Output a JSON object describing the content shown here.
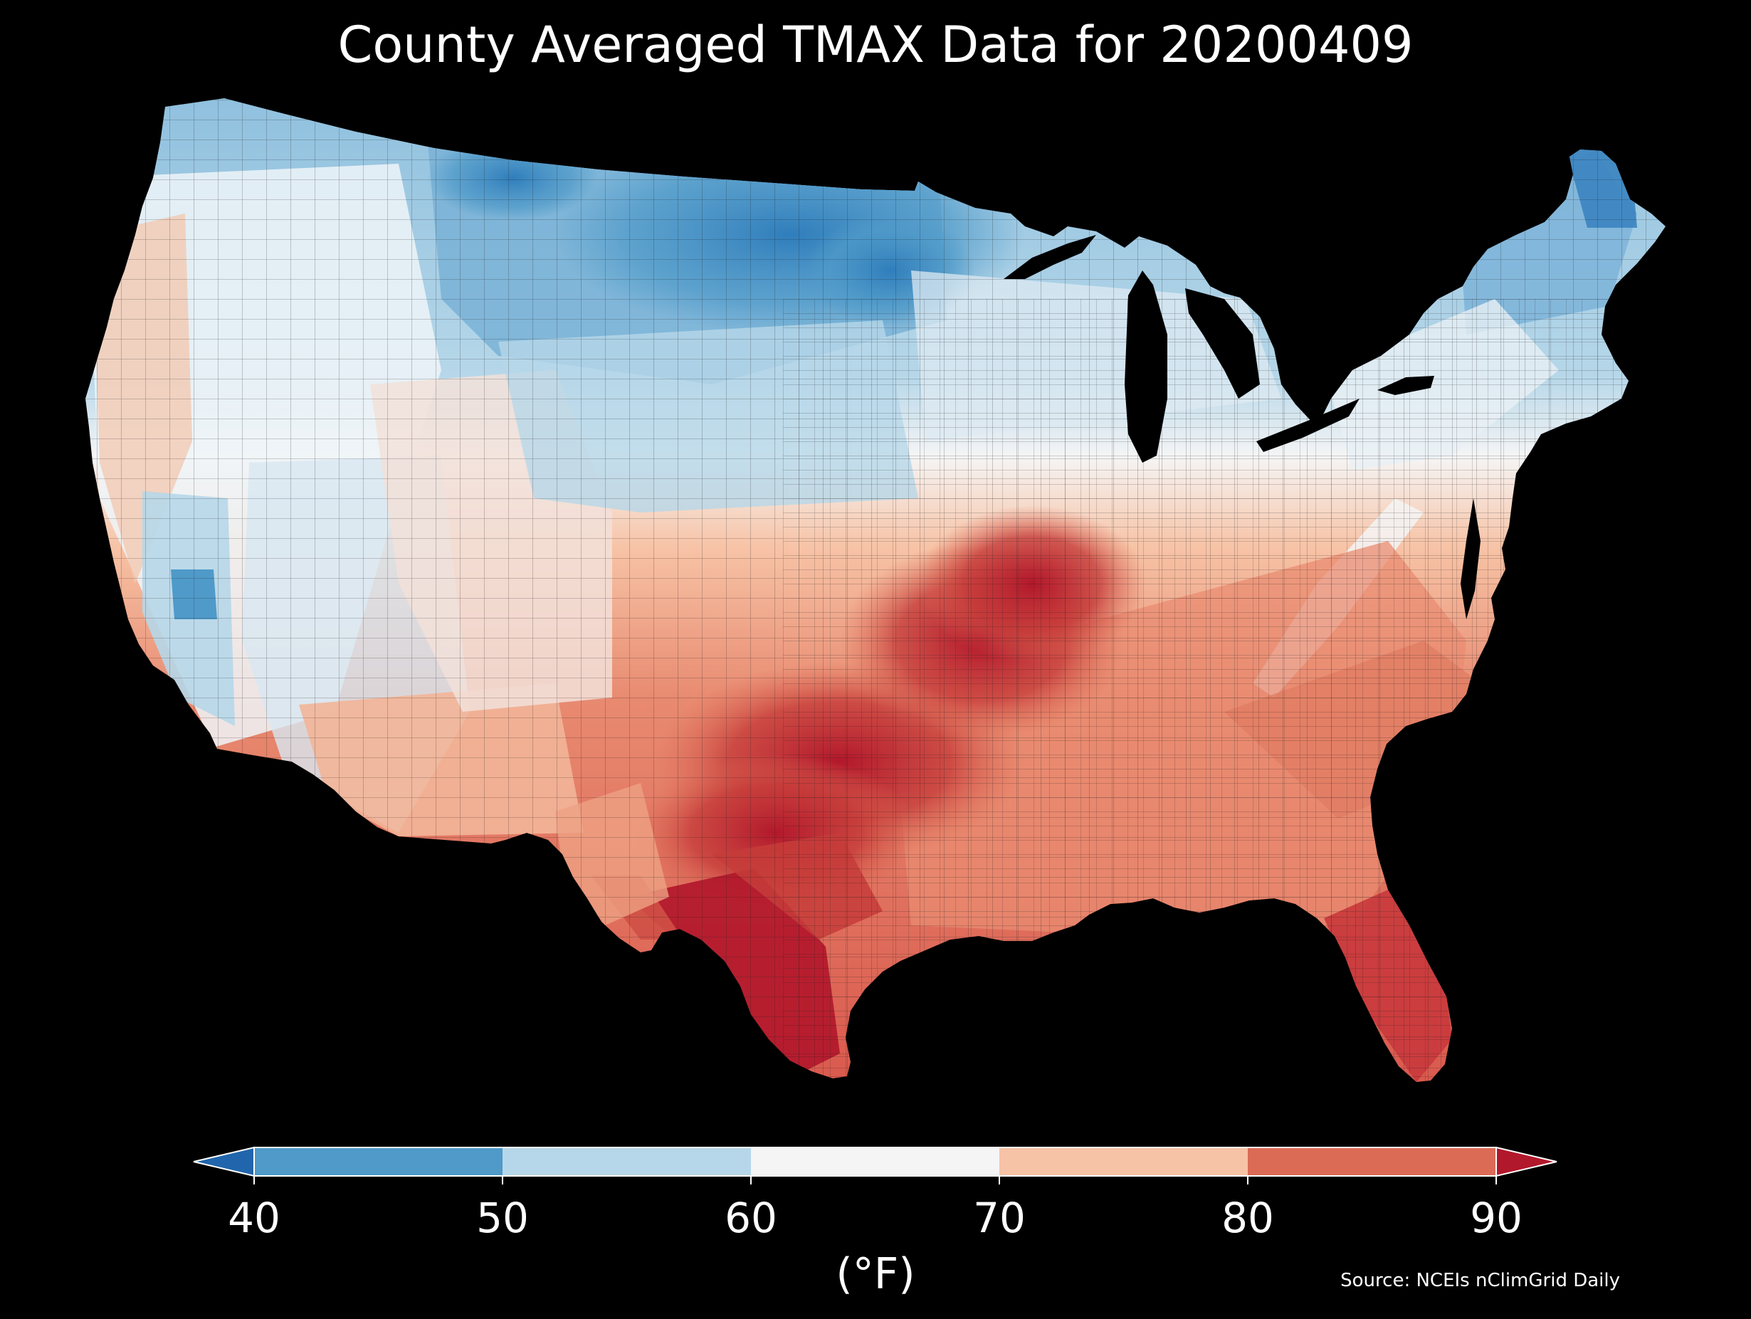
{
  "map": {
    "title": "County Averaged TMAX Data for 20200409",
    "region": "Contiguous United States (county level)",
    "background_color": "#000000",
    "county_border_color": "#1a1a1a"
  },
  "colorbar": {
    "unit": "(°F)",
    "ticks": [
      "40",
      "50",
      "60",
      "70",
      "80",
      "90"
    ],
    "bins": [
      {
        "range": "< 40",
        "color": "#2166ac"
      },
      {
        "range": "40-50",
        "color": "#4f9ac9"
      },
      {
        "range": "50-60",
        "color": "#b6d7e9"
      },
      {
        "range": "60-70",
        "color": "#f5f5f5"
      },
      {
        "range": "70-80",
        "color": "#f7c3a6"
      },
      {
        "range": "80-90",
        "color": "#dc6b56"
      },
      {
        "range": "> 90",
        "color": "#b2182b"
      }
    ],
    "extend": "both"
  },
  "source": "Source: NCEIs nClimGrid Daily"
}
